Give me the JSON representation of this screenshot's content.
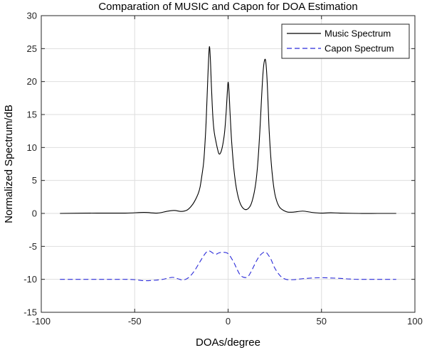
{
  "chart_data": {
    "type": "line",
    "title": "Comparation of MUSIC and Capon for DOA Estimation",
    "xlabel": "DOAs/degree",
    "ylabel": "Normalized Spectrum/dB",
    "xlim": [
      -100,
      100
    ],
    "ylim": [
      -15,
      30
    ],
    "xticks": [
      -100,
      -50,
      0,
      50,
      100
    ],
    "yticks": [
      -15,
      -10,
      -5,
      0,
      5,
      10,
      15,
      20,
      25,
      30
    ],
    "grid": true,
    "legend_position": "top-right",
    "series": [
      {
        "name": "Music Spectrum",
        "color": "#000000",
        "style": "solid",
        "x": [
          -90,
          -70,
          -55,
          -45,
          -38,
          -33,
          -29,
          -25,
          -22,
          -20,
          -18,
          -16,
          -15,
          -14,
          -13,
          -12,
          -11.5,
          -11,
          -10.5,
          -10,
          -9.5,
          -9,
          -8.5,
          -8,
          -7.5,
          -7,
          -6.5,
          -6,
          -5.5,
          -5,
          -4.5,
          -4,
          -3.5,
          -3,
          -2.5,
          -2,
          -1.5,
          -1,
          -0.5,
          0,
          0.5,
          1,
          1.5,
          2,
          3,
          4,
          5,
          6,
          7,
          8,
          9,
          10,
          11,
          12,
          13,
          14,
          15,
          16,
          17,
          18,
          18.5,
          19,
          19.5,
          20,
          20.5,
          21,
          21.5,
          22,
          23,
          24,
          25,
          26,
          27,
          28,
          30,
          32,
          35,
          40,
          45,
          50,
          55,
          60,
          70,
          80,
          90
        ],
        "values": [
          0,
          0.05,
          0.05,
          0.15,
          0.05,
          0.3,
          0.45,
          0.3,
          0.5,
          1.0,
          1.8,
          3.0,
          4.0,
          5.8,
          8.0,
          12.5,
          15.8,
          19.5,
          23.0,
          25.3,
          23.5,
          19.8,
          16.5,
          14.0,
          12.5,
          11.6,
          10.9,
          10.2,
          9.6,
          9.1,
          9.0,
          9.2,
          9.6,
          10.2,
          11.0,
          12.0,
          13.5,
          15.5,
          18.0,
          19.9,
          18.5,
          15.5,
          12.8,
          10.5,
          7.0,
          4.6,
          3.0,
          1.9,
          1.2,
          0.8,
          0.6,
          0.6,
          0.8,
          1.2,
          2.0,
          3.2,
          5.0,
          8.0,
          12.5,
          18.0,
          20.5,
          22.3,
          23.2,
          23.3,
          22.0,
          19.5,
          16.0,
          12.5,
          8.0,
          5.0,
          3.0,
          1.9,
          1.2,
          0.8,
          0.4,
          0.2,
          0.2,
          0.35,
          0.15,
          0.05,
          0.1,
          0.05,
          0,
          0,
          0
        ]
      },
      {
        "name": "Capon Spectrum",
        "color": "#2b2bd9",
        "style": "dashed",
        "x": [
          -90,
          -70,
          -60,
          -55,
          -50,
          -45,
          -40,
          -35,
          -30,
          -27,
          -24,
          -21,
          -18,
          -15,
          -12,
          -10,
          -7,
          -5,
          -3,
          0,
          3,
          5,
          7,
          10,
          12,
          15,
          17,
          19,
          20,
          21,
          23,
          25,
          28,
          31,
          35,
          40,
          45,
          50,
          55,
          60,
          65,
          70,
          80,
          90
        ],
        "values": [
          -10,
          -10,
          -10,
          -10,
          -10.05,
          -10.2,
          -10.15,
          -10.0,
          -9.7,
          -9.9,
          -10.1,
          -9.7,
          -8.7,
          -7.3,
          -6.0,
          -5.7,
          -6.2,
          -6.0,
          -5.9,
          -6.1,
          -7.4,
          -8.6,
          -9.5,
          -9.7,
          -9.0,
          -7.3,
          -6.4,
          -5.9,
          -5.9,
          -6.1,
          -7.0,
          -8.3,
          -9.5,
          -10.0,
          -10.05,
          -9.9,
          -9.8,
          -9.75,
          -9.8,
          -9.85,
          -9.95,
          -10.0,
          -10.0,
          -10.0
        ]
      }
    ]
  }
}
